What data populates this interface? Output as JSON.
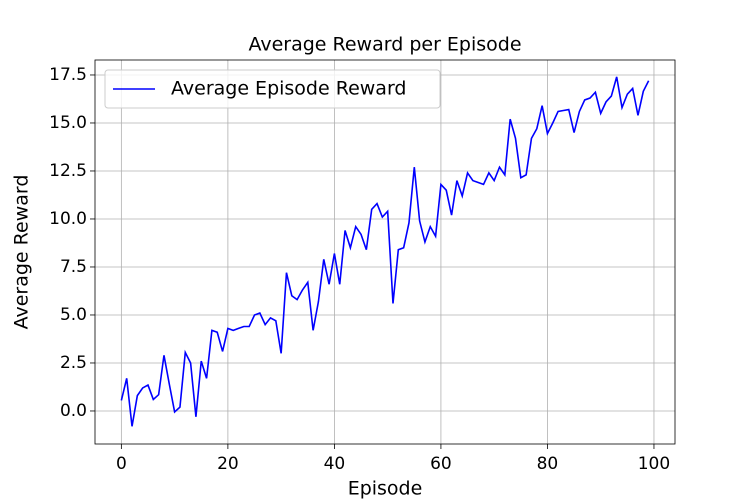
{
  "chart_data": {
    "type": "line",
    "title": "Average Reward per Episode",
    "xlabel": "Episode",
    "ylabel": "Average Reward",
    "x": [
      0,
      1,
      2,
      3,
      4,
      5,
      6,
      7,
      8,
      9,
      10,
      11,
      12,
      13,
      14,
      15,
      16,
      17,
      18,
      19,
      20,
      21,
      22,
      23,
      24,
      25,
      26,
      27,
      28,
      29,
      30,
      31,
      32,
      33,
      34,
      35,
      36,
      37,
      38,
      39,
      40,
      41,
      42,
      43,
      44,
      45,
      46,
      47,
      48,
      49,
      50,
      51,
      52,
      53,
      54,
      55,
      56,
      57,
      58,
      59,
      60,
      61,
      62,
      63,
      64,
      65,
      66,
      67,
      68,
      69,
      70,
      71,
      72,
      73,
      74,
      75,
      76,
      77,
      78,
      79,
      80,
      81,
      82,
      83,
      84,
      85,
      86,
      87,
      88,
      89,
      90,
      91,
      92,
      93,
      94,
      95,
      96,
      97,
      98,
      99
    ],
    "series": [
      {
        "name": "Average Episode Reward",
        "color": "#0000ff",
        "values": [
          0.55,
          1.7,
          -0.8,
          0.8,
          1.2,
          1.35,
          0.6,
          0.85,
          2.9,
          1.4,
          -0.05,
          0.2,
          3.05,
          2.5,
          -0.3,
          2.6,
          1.7,
          4.2,
          4.1,
          3.1,
          4.3,
          4.2,
          4.3,
          4.4,
          4.4,
          5.0,
          5.1,
          4.5,
          4.85,
          4.7,
          3.0,
          7.2,
          6.0,
          5.8,
          6.3,
          6.7,
          4.2,
          5.7,
          7.9,
          6.6,
          8.2,
          6.6,
          9.4,
          8.5,
          9.6,
          9.2,
          8.4,
          10.5,
          10.8,
          10.1,
          10.4,
          5.6,
          8.4,
          8.5,
          9.8,
          12.7,
          9.9,
          8.8,
          9.6,
          9.1,
          11.8,
          11.5,
          10.2,
          12.0,
          11.2,
          12.4,
          12.0,
          11.9,
          11.8,
          12.4,
          12.0,
          12.7,
          12.3,
          15.2,
          14.2,
          12.15,
          12.3,
          14.2,
          14.7,
          15.9,
          14.45,
          15.0,
          15.6,
          15.65,
          15.7,
          14.5,
          15.6,
          16.2,
          16.3,
          16.6,
          15.5,
          16.1,
          16.4,
          17.4,
          15.8,
          16.5,
          16.8,
          15.4,
          16.65,
          17.2
        ]
      }
    ],
    "xlim": [
      -4.95,
      103.95
    ],
    "ylim": [
      -1.72,
      18.28
    ],
    "xticks": [
      0,
      20,
      40,
      60,
      80,
      100
    ],
    "yticks": [
      {
        "value": 0,
        "label": "0.0"
      },
      2.5,
      {
        "value": 5,
        "label": "5.0"
      },
      7.5,
      {
        "value": 10,
        "label": "10.0"
      },
      12.5,
      {
        "value": 15,
        "label": "15.0"
      },
      17.5
    ],
    "grid": true,
    "legend": "upper left"
  }
}
